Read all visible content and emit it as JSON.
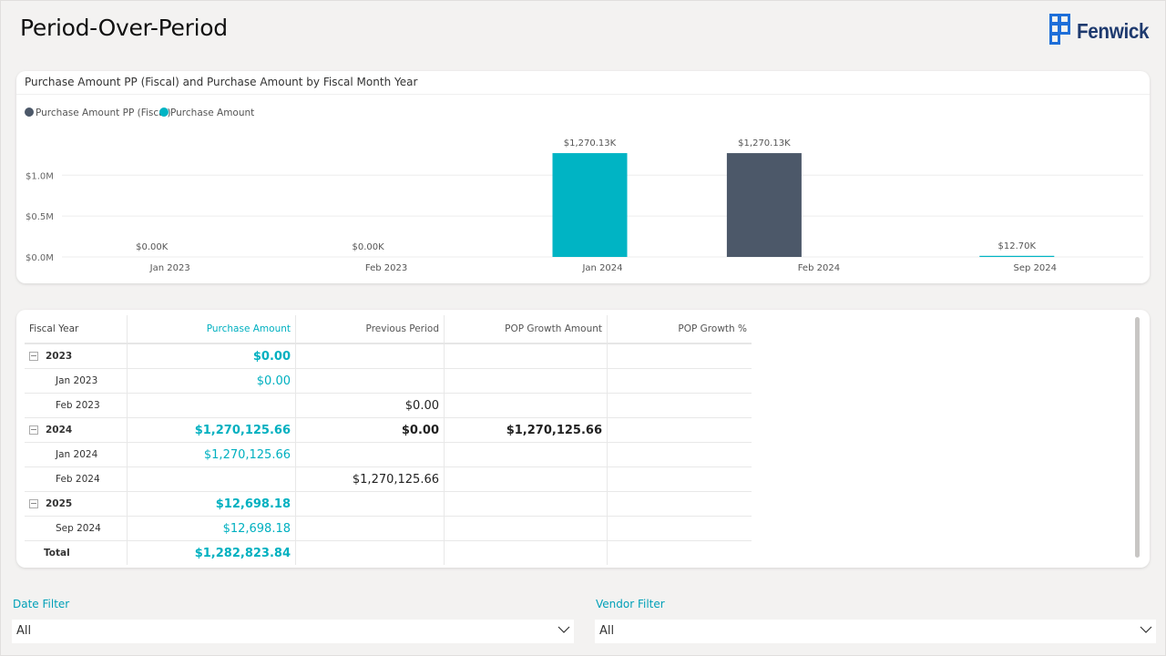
{
  "page": {
    "title": "Period-Over-Period"
  },
  "brand": {
    "name": "Fenwick",
    "logo_icon": "fenwick-logo-icon",
    "color": "#1e6fd9"
  },
  "colors": {
    "teal": "#00b4c4",
    "slate": "#4c5869",
    "accent_label": "#00a0b8"
  },
  "chart_data": {
    "type": "bar",
    "title": "Purchase Amount PP (Fiscal) and Purchase Amount by Fiscal Month Year",
    "legend_position": "top-left",
    "legend": [
      {
        "name": "Purchase Amount PP (Fiscal)",
        "color": "#4c5869"
      },
      {
        "name": "Purchase Amount",
        "color": "#00b4c4"
      }
    ],
    "y_ticks": [
      "$0.0M",
      "$0.5M",
      "$1.0M"
    ],
    "ylim": [
      0,
      1.36
    ],
    "x_ticks": [
      "Jan 2023",
      "Feb 2023",
      "Jan 2024",
      "Feb 2024",
      "Sep 2024"
    ],
    "categories": [
      "Jan 2023",
      "Feb 2023",
      "Jan 2024",
      "Feb 2024",
      "Sep 2024"
    ],
    "series": [
      {
        "name": "Purchase Amount PP (Fiscal)",
        "values": [
          null,
          0,
          null,
          1.27013,
          null
        ]
      },
      {
        "name": "Purchase Amount",
        "values": [
          0,
          null,
          1.27013,
          null,
          0.0127
        ]
      }
    ],
    "data_labels": [
      "$0.00K",
      "$0.00K",
      "$1,270.13K",
      "$1,270.13K",
      "$12.70K"
    ],
    "grid": true
  },
  "table": {
    "headers": [
      "Fiscal Year",
      "Purchase Amount",
      "Previous Period",
      "POP Growth Amount",
      "POP Growth %"
    ],
    "rows": [
      {
        "level": 0,
        "label": "2023",
        "purchase": "$0.00",
        "previous": "",
        "growth": "",
        "growth_pct": ""
      },
      {
        "level": 1,
        "label": "Jan 2023",
        "purchase": "$0.00",
        "previous": "",
        "growth": "",
        "growth_pct": ""
      },
      {
        "level": 1,
        "label": "Feb 2023",
        "purchase": "",
        "previous": "$0.00",
        "growth": "",
        "growth_pct": ""
      },
      {
        "level": 0,
        "label": "2024",
        "purchase": "$1,270,125.66",
        "previous": "$0.00",
        "growth": "$1,270,125.66",
        "growth_pct": ""
      },
      {
        "level": 1,
        "label": "Jan 2024",
        "purchase": "$1,270,125.66",
        "previous": "",
        "growth": "",
        "growth_pct": ""
      },
      {
        "level": 1,
        "label": "Feb 2024",
        "purchase": "",
        "previous": "$1,270,125.66",
        "growth": "",
        "growth_pct": ""
      },
      {
        "level": 0,
        "label": "2025",
        "purchase": "$12,698.18",
        "previous": "",
        "growth": "",
        "growth_pct": ""
      },
      {
        "level": 1,
        "label": "Sep 2024",
        "purchase": "$12,698.18",
        "previous": "",
        "growth": "",
        "growth_pct": ""
      }
    ],
    "total": {
      "label": "Total",
      "purchase": "$1,282,823.84",
      "previous": "",
      "growth": "",
      "growth_pct": ""
    }
  },
  "filters": {
    "date": {
      "label": "Date Filter",
      "value": "All"
    },
    "vendor": {
      "label": "Vendor Filter",
      "value": "All"
    }
  }
}
